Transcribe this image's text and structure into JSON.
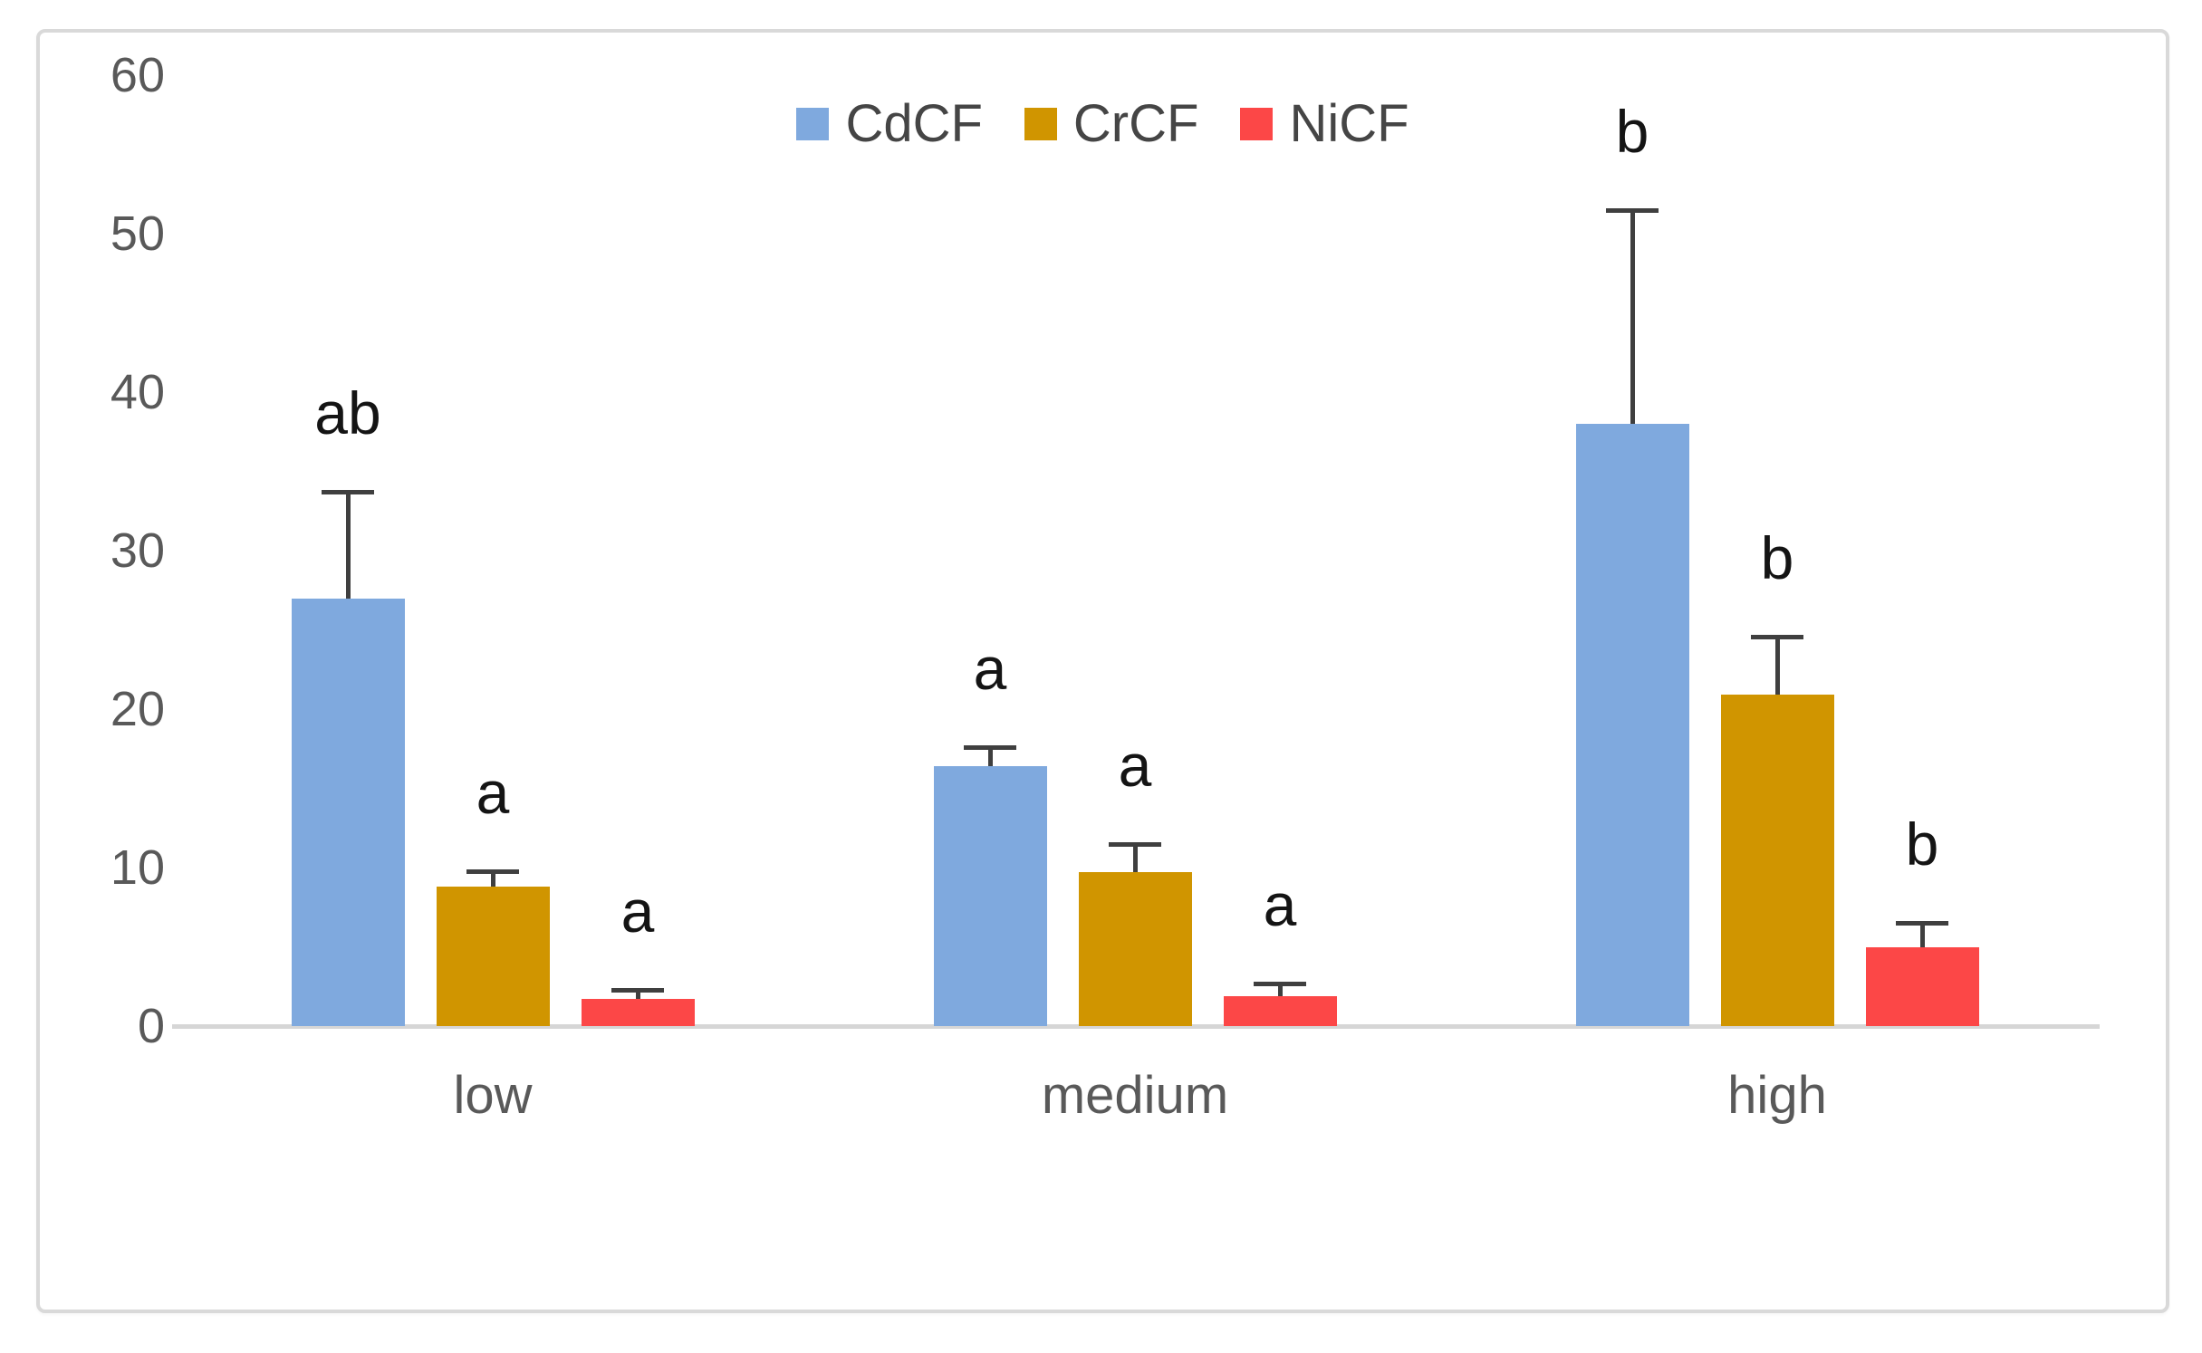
{
  "figure": {
    "background": "#ffffff",
    "border_color": "#d9d9d9"
  },
  "chart_data": {
    "type": "bar",
    "title": "",
    "xlabel": "",
    "ylabel": "",
    "categories": [
      "low",
      "medium",
      "high"
    ],
    "series": [
      {
        "name": "CdCF",
        "color": "#7FA9DE",
        "values": [
          27.0,
          16.4,
          38.0
        ],
        "errors_plus": [
          6.7,
          1.2,
          13.5
        ],
        "sig_letters": [
          "ab",
          "a",
          "b"
        ]
      },
      {
        "name": "CrCF",
        "color": "#D09500",
        "values": [
          8.8,
          9.7,
          20.9
        ],
        "errors_plus": [
          1.0,
          1.8,
          3.7
        ],
        "sig_letters": [
          "a",
          "a",
          "b"
        ]
      },
      {
        "name": "NiCF",
        "color": "#FC4747",
        "values": [
          1.7,
          1.9,
          5.0
        ],
        "errors_plus": [
          0.6,
          0.8,
          1.5
        ],
        "sig_letters": [
          "a",
          "a",
          "b"
        ]
      }
    ],
    "ylim": [
      0,
      60
    ],
    "yticks": [
      0,
      10,
      20,
      30,
      40,
      50,
      60
    ],
    "grid": false,
    "legend_position": "top-center",
    "error_bar_color": "#3f3f3f",
    "annotation_color": "#141414",
    "axis_line_color": "#d6d6d6",
    "tick_label_color": "#595959"
  }
}
